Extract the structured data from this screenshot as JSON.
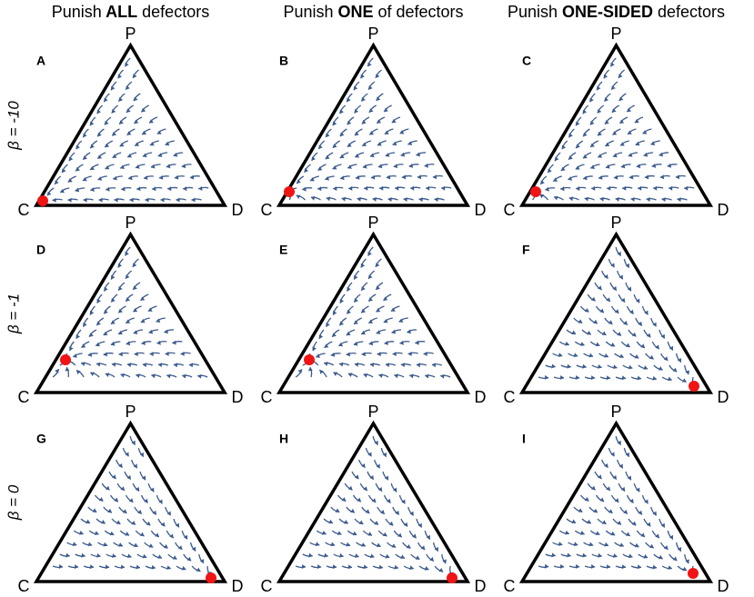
{
  "columns": [
    {
      "prefix": "Punish",
      "emphasis": "ALL",
      "suffix": "defectors"
    },
    {
      "prefix": "Punish",
      "emphasis": "ONE",
      "suffix": "of defectors"
    },
    {
      "prefix": "Punish",
      "emphasis": "ONE-SIDED",
      "suffix": "defectors"
    }
  ],
  "rows": [
    "β = -10",
    "β = -1",
    "β = 0"
  ],
  "vertices": {
    "top": "P",
    "left": "C",
    "right": "D"
  },
  "panels": [
    "A",
    "B",
    "C",
    "D",
    "E",
    "F",
    "G",
    "H",
    "I"
  ]
}
